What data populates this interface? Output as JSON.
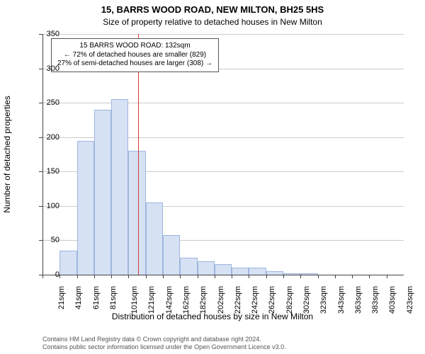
{
  "title_line1": "15, BARRS WOOD ROAD, NEW MILTON, BH25 5HS",
  "title_line2": "Size of property relative to detached houses in New Milton",
  "title_fontsize": 13,
  "subtitle_fontsize": 12,
  "xlabel": "Distribution of detached houses by size in New Milton",
  "ylabel": "Number of detached properties",
  "axis_label_fontsize": 12,
  "tick_fontsize": 11,
  "chart": {
    "type": "histogram",
    "background_color": "#ffffff",
    "grid_color": "#cccccc",
    "axis_color": "#444444",
    "bar_fill": "#d6e1f4",
    "bar_stroke": "#9fb6de",
    "bar_width_ratio": 1.0,
    "ylim": [
      0,
      350
    ],
    "ytick_step": 50,
    "yticks": [
      0,
      50,
      100,
      150,
      200,
      250,
      300,
      350
    ],
    "categories": [
      "21sqm",
      "41sqm",
      "61sqm",
      "81sqm",
      "101sqm",
      "121sqm",
      "142sqm",
      "162sqm",
      "182sqm",
      "202sqm",
      "222sqm",
      "242sqm",
      "262sqm",
      "282sqm",
      "302sqm",
      "323sqm",
      "343sqm",
      "363sqm",
      "383sqm",
      "403sqm",
      "423sqm"
    ],
    "values": [
      0,
      35,
      195,
      240,
      255,
      180,
      105,
      58,
      25,
      20,
      15,
      10,
      10,
      5,
      2,
      2,
      0,
      0,
      0,
      0,
      0
    ],
    "marker_value_sqm": 132,
    "marker_color": "#d93a3a",
    "marker_bin_index_after": 5
  },
  "annotation": {
    "lines": [
      "15 BARRS WOOD ROAD: 132sqm",
      "← 72% of detached houses are smaller (829)",
      "27% of semi-detached houses are larger (308) →"
    ],
    "fontsize": 10,
    "border_color": "#555555",
    "background_color": "#ffffff"
  },
  "footer": {
    "line1": "Contains HM Land Registry data © Crown copyright and database right 2024.",
    "line2": "Contains public sector information licensed under the Open Government Licence v3.0.",
    "fontsize": 9,
    "color": "#555555"
  }
}
